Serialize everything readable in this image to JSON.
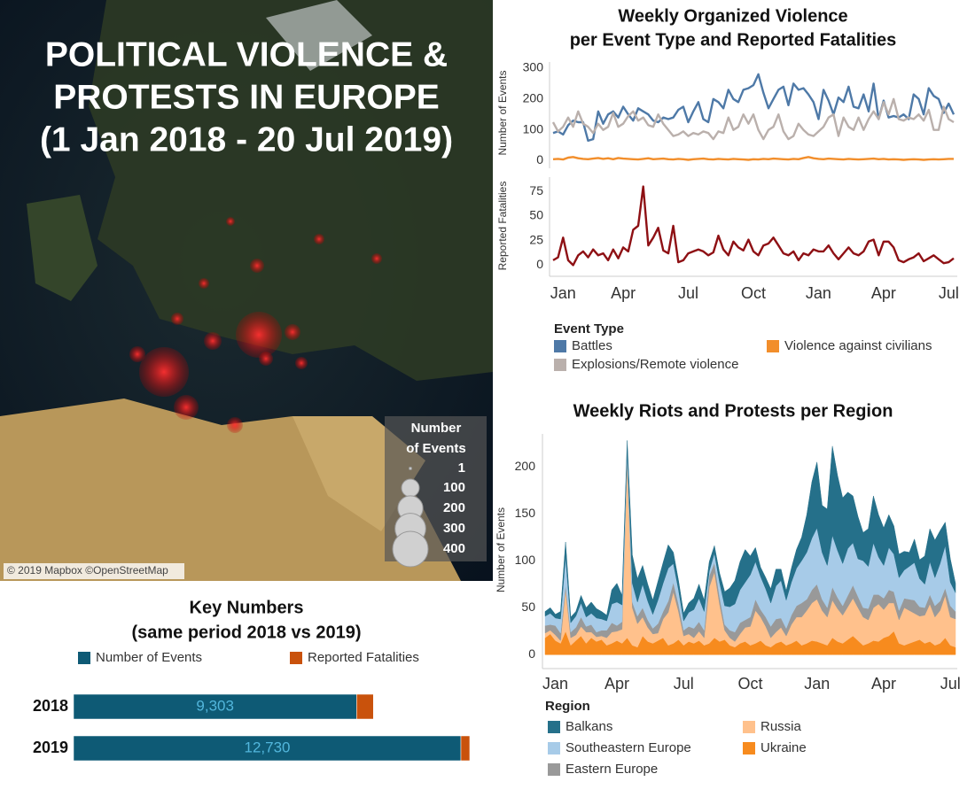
{
  "map": {
    "title": [
      "POLITICAL VIOLENCE &",
      "PROTESTS IN EUROPE",
      "(1 Jan 2018 - 20 Jul 2019)"
    ],
    "legend": {
      "title": [
        "Number",
        "of Events"
      ],
      "sizes": [
        1,
        100,
        200,
        300,
        400
      ]
    },
    "attribution": "© 2019 Mapbox ©OpenStreetMap"
  },
  "chart_data": [
    {
      "type": "line",
      "title": [
        "Weekly Organized Violence",
        "per Event Type and Reported Fatalities"
      ],
      "ylabel": "Number of Events",
      "ylim": [
        -10,
        320
      ],
      "yticks": [
        0,
        100,
        200,
        300
      ],
      "legend_title": "Event Type",
      "series": [
        {
          "name": "Battles",
          "color": "#4e79a7",
          "values": [
            90,
            95,
            85,
            115,
            130,
            125,
            125,
            65,
            70,
            160,
            120,
            150,
            160,
            140,
            175,
            150,
            130,
            170,
            160,
            150,
            130,
            125,
            140,
            135,
            140,
            165,
            175,
            125,
            160,
            190,
            135,
            125,
            200,
            190,
            170,
            230,
            200,
            190,
            230,
            235,
            245,
            280,
            220,
            170,
            200,
            230,
            240,
            180,
            250,
            230,
            235,
            215,
            190,
            135,
            230,
            195,
            150,
            205,
            190,
            240,
            175,
            170,
            215,
            160,
            250,
            135,
            195,
            140,
            145,
            140,
            150,
            135,
            215,
            200,
            150,
            235,
            210,
            200,
            155,
            185,
            150
          ]
        },
        {
          "name": "Explosions/Remote violence",
          "color": "#bab0ac",
          "values": [
            125,
            95,
            110,
            140,
            110,
            160,
            120,
            110,
            90,
            120,
            100,
            110,
            155,
            110,
            120,
            145,
            160,
            130,
            140,
            115,
            110,
            150,
            120,
            100,
            80,
            85,
            95,
            80,
            90,
            85,
            95,
            90,
            70,
            95,
            90,
            140,
            100,
            110,
            150,
            120,
            150,
            100,
            70,
            100,
            110,
            150,
            95,
            70,
            80,
            120,
            100,
            85,
            80,
            95,
            110,
            140,
            150,
            80,
            140,
            110,
            100,
            140,
            100,
            135,
            160,
            135,
            190,
            150,
            200,
            135,
            130,
            140,
            135,
            150,
            130,
            165,
            100,
            100,
            175,
            135,
            125
          ]
        },
        {
          "name": "Violence against civilians",
          "color": "#f28e2b",
          "values": [
            5,
            6,
            4,
            10,
            12,
            8,
            6,
            5,
            7,
            9,
            6,
            8,
            5,
            9,
            7,
            6,
            5,
            4,
            6,
            8,
            5,
            6,
            7,
            5,
            4,
            6,
            5,
            3,
            5,
            6,
            7,
            5,
            4,
            6,
            5,
            4,
            6,
            5,
            4,
            3,
            5,
            4,
            6,
            5,
            7,
            6,
            5,
            4,
            6,
            5,
            9,
            12,
            8,
            6,
            5,
            7,
            6,
            5,
            4,
            6,
            5,
            4,
            5,
            6,
            7,
            5,
            6,
            4,
            5,
            4,
            3,
            4,
            5,
            4,
            3,
            4,
            5,
            4,
            5,
            6,
            6
          ]
        }
      ]
    },
    {
      "type": "line",
      "ylabel": "Reported Fatalities",
      "ylim": [
        -5,
        85
      ],
      "yticks": [
        0,
        25,
        50,
        75
      ],
      "categories": [
        null,
        null,
        "Jan",
        null,
        null,
        null,
        null,
        null,
        null,
        null,
        null,
        null,
        null,
        null,
        "Apr",
        null,
        null,
        null,
        null,
        null,
        null,
        null,
        null,
        null,
        null,
        null,
        null,
        "Jul",
        null,
        null,
        null,
        null,
        null,
        null,
        null,
        null,
        null,
        null,
        null,
        null,
        "Oct",
        null,
        null,
        null,
        null,
        null,
        null,
        null,
        null,
        null,
        null,
        null,
        null,
        "Jan",
        null,
        null,
        null,
        null,
        null,
        null,
        null,
        null,
        null,
        null,
        null,
        null,
        "Apr",
        null,
        null,
        null,
        null,
        null,
        null,
        null,
        null,
        null,
        null,
        null,
        null,
        "Jul",
        null
      ],
      "series": [
        {
          "name": "Reported Fatalities",
          "color": "#8e1014",
          "values": [
            5,
            8,
            28,
            5,
            0,
            10,
            14,
            8,
            16,
            10,
            12,
            5,
            16,
            7,
            18,
            14,
            36,
            40,
            80,
            20,
            28,
            38,
            15,
            12,
            40,
            3,
            5,
            12,
            14,
            16,
            14,
            10,
            13,
            30,
            16,
            10,
            24,
            18,
            15,
            26,
            14,
            10,
            20,
            22,
            28,
            20,
            12,
            10,
            14,
            5,
            12,
            10,
            16,
            14,
            14,
            20,
            12,
            6,
            12,
            18,
            12,
            10,
            14,
            24,
            26,
            10,
            24,
            24,
            18,
            5,
            3,
            6,
            8,
            12,
            4,
            7,
            10,
            6,
            2,
            3,
            7
          ]
        }
      ]
    },
    {
      "type": "area",
      "stacked": true,
      "title": [
        "Weekly Riots and Protests per Region"
      ],
      "ylabel": "Number of Events",
      "ylim": [
        -12,
        235
      ],
      "yticks": [
        0,
        50,
        100,
        150,
        200
      ],
      "legend_title": "Region",
      "categories": [
        null,
        null,
        "Jan",
        null,
        null,
        null,
        null,
        null,
        null,
        null,
        null,
        null,
        null,
        null,
        "Apr",
        null,
        null,
        null,
        null,
        null,
        null,
        null,
        null,
        null,
        null,
        null,
        null,
        "Jul",
        null,
        null,
        null,
        null,
        null,
        null,
        null,
        null,
        null,
        null,
        null,
        null,
        "Oct",
        null,
        null,
        null,
        null,
        null,
        null,
        null,
        null,
        null,
        null,
        null,
        null,
        "Jan",
        null,
        null,
        null,
        null,
        null,
        null,
        null,
        null,
        null,
        null,
        null,
        null,
        "Apr",
        null,
        null,
        null,
        null,
        null,
        null,
        null,
        null,
        null,
        null,
        null,
        null,
        "Jul",
        null
      ],
      "series": [
        {
          "name": "Balkans",
          "color": "#25708a",
          "values": [
            5,
            6,
            4,
            8,
            15,
            6,
            5,
            8,
            10,
            12,
            10,
            8,
            6,
            15,
            20,
            10,
            10,
            30,
            25,
            20,
            18,
            15,
            20,
            22,
            25,
            12,
            10,
            8,
            10,
            12,
            15,
            12,
            10,
            8,
            10,
            15,
            20,
            25,
            30,
            35,
            20,
            15,
            10,
            12,
            15,
            18,
            12,
            10,
            15,
            20,
            25,
            40,
            60,
            70,
            50,
            60,
            95,
            80,
            70,
            60,
            50,
            45,
            30,
            40,
            50,
            45,
            40,
            35,
            30,
            25,
            20,
            15,
            25,
            20,
            30,
            35,
            40,
            35,
            25,
            25,
            10
          ]
        },
        {
          "name": "Southeastern Europe",
          "color": "#a7cbe8",
          "values": [
            10,
            12,
            8,
            15,
            30,
            10,
            12,
            15,
            10,
            12,
            15,
            12,
            10,
            20,
            25,
            18,
            5,
            20,
            15,
            25,
            20,
            15,
            25,
            30,
            35,
            20,
            15,
            10,
            15,
            20,
            25,
            20,
            5,
            10,
            15,
            20,
            25,
            30,
            35,
            40,
            45,
            40,
            35,
            30,
            25,
            35,
            40,
            30,
            35,
            40,
            45,
            50,
            55,
            60,
            50,
            45,
            55,
            50,
            45,
            50,
            45,
            40,
            50,
            45,
            55,
            40,
            35,
            45,
            40,
            35,
            30,
            35,
            40,
            30,
            25,
            35,
            30,
            40,
            45,
            25,
            20
          ]
        },
        {
          "name": "Eastern Europe",
          "color": "#999999",
          "values": [
            8,
            6,
            10,
            8,
            5,
            6,
            8,
            10,
            6,
            8,
            5,
            6,
            8,
            10,
            6,
            8,
            5,
            6,
            8,
            10,
            8,
            6,
            10,
            8,
            12,
            10,
            8,
            6,
            8,
            10,
            10,
            8,
            12,
            10,
            8,
            6,
            8,
            10,
            12,
            8,
            10,
            12,
            8,
            10,
            12,
            14,
            10,
            8,
            10,
            12,
            15,
            12,
            14,
            16,
            12,
            10,
            14,
            12,
            10,
            12,
            14,
            12,
            10,
            12,
            14,
            10,
            12,
            14,
            12,
            10,
            10,
            12,
            14,
            10,
            8,
            10,
            12,
            10,
            8,
            12,
            8
          ]
        },
        {
          "name": "Russia",
          "color": "#ffc18c",
          "values": [
            5,
            4,
            6,
            3,
            45,
            8,
            6,
            10,
            12,
            6,
            5,
            4,
            8,
            12,
            10,
            15,
            190,
            40,
            25,
            20,
            15,
            10,
            8,
            20,
            35,
            55,
            30,
            10,
            8,
            6,
            10,
            8,
            60,
            70,
            40,
            10,
            8,
            6,
            10,
            15,
            20,
            35,
            25,
            20,
            10,
            12,
            15,
            10,
            20,
            25,
            30,
            35,
            40,
            45,
            35,
            30,
            40,
            35,
            30,
            35,
            40,
            35,
            30,
            25,
            35,
            40,
            30,
            35,
            30,
            25,
            40,
            35,
            30,
            25,
            30,
            40,
            30,
            35,
            45,
            30,
            30
          ]
        },
        {
          "name": "Ukraine",
          "color": "#f78b1e",
          "values": [
            18,
            22,
            15,
            12,
            25,
            10,
            15,
            20,
            12,
            18,
            14,
            16,
            10,
            12,
            15,
            12,
            18,
            10,
            8,
            20,
            14,
            12,
            15,
            18,
            10,
            12,
            16,
            10,
            14,
            12,
            15,
            10,
            12,
            18,
            14,
            16,
            10,
            8,
            12,
            14,
            10,
            12,
            15,
            10,
            8,
            12,
            14,
            10,
            12,
            15,
            10,
            12,
            15,
            14,
            12,
            10,
            18,
            14,
            12,
            16,
            20,
            15,
            10,
            12,
            15,
            14,
            18,
            20,
            25,
            12,
            10,
            12,
            14,
            16,
            12,
            14,
            10,
            12,
            18,
            10,
            8
          ]
        }
      ]
    },
    {
      "type": "bar",
      "orientation": "horizontal",
      "stacked": true,
      "title": [
        "Key Numbers",
        "(same period 2018 vs 2019)"
      ],
      "categories": [
        "2018",
        "2019"
      ],
      "xlim": [
        0,
        14000
      ],
      "series": [
        {
          "name": "Number of Events",
          "color": "#0e5a75",
          "values": [
            9303,
            12730
          ],
          "value_labels": [
            "9,303",
            "12,730"
          ]
        },
        {
          "name": "Reported Fatalities",
          "color": "#c9520c",
          "values": [
            550,
            290
          ]
        }
      ]
    }
  ]
}
